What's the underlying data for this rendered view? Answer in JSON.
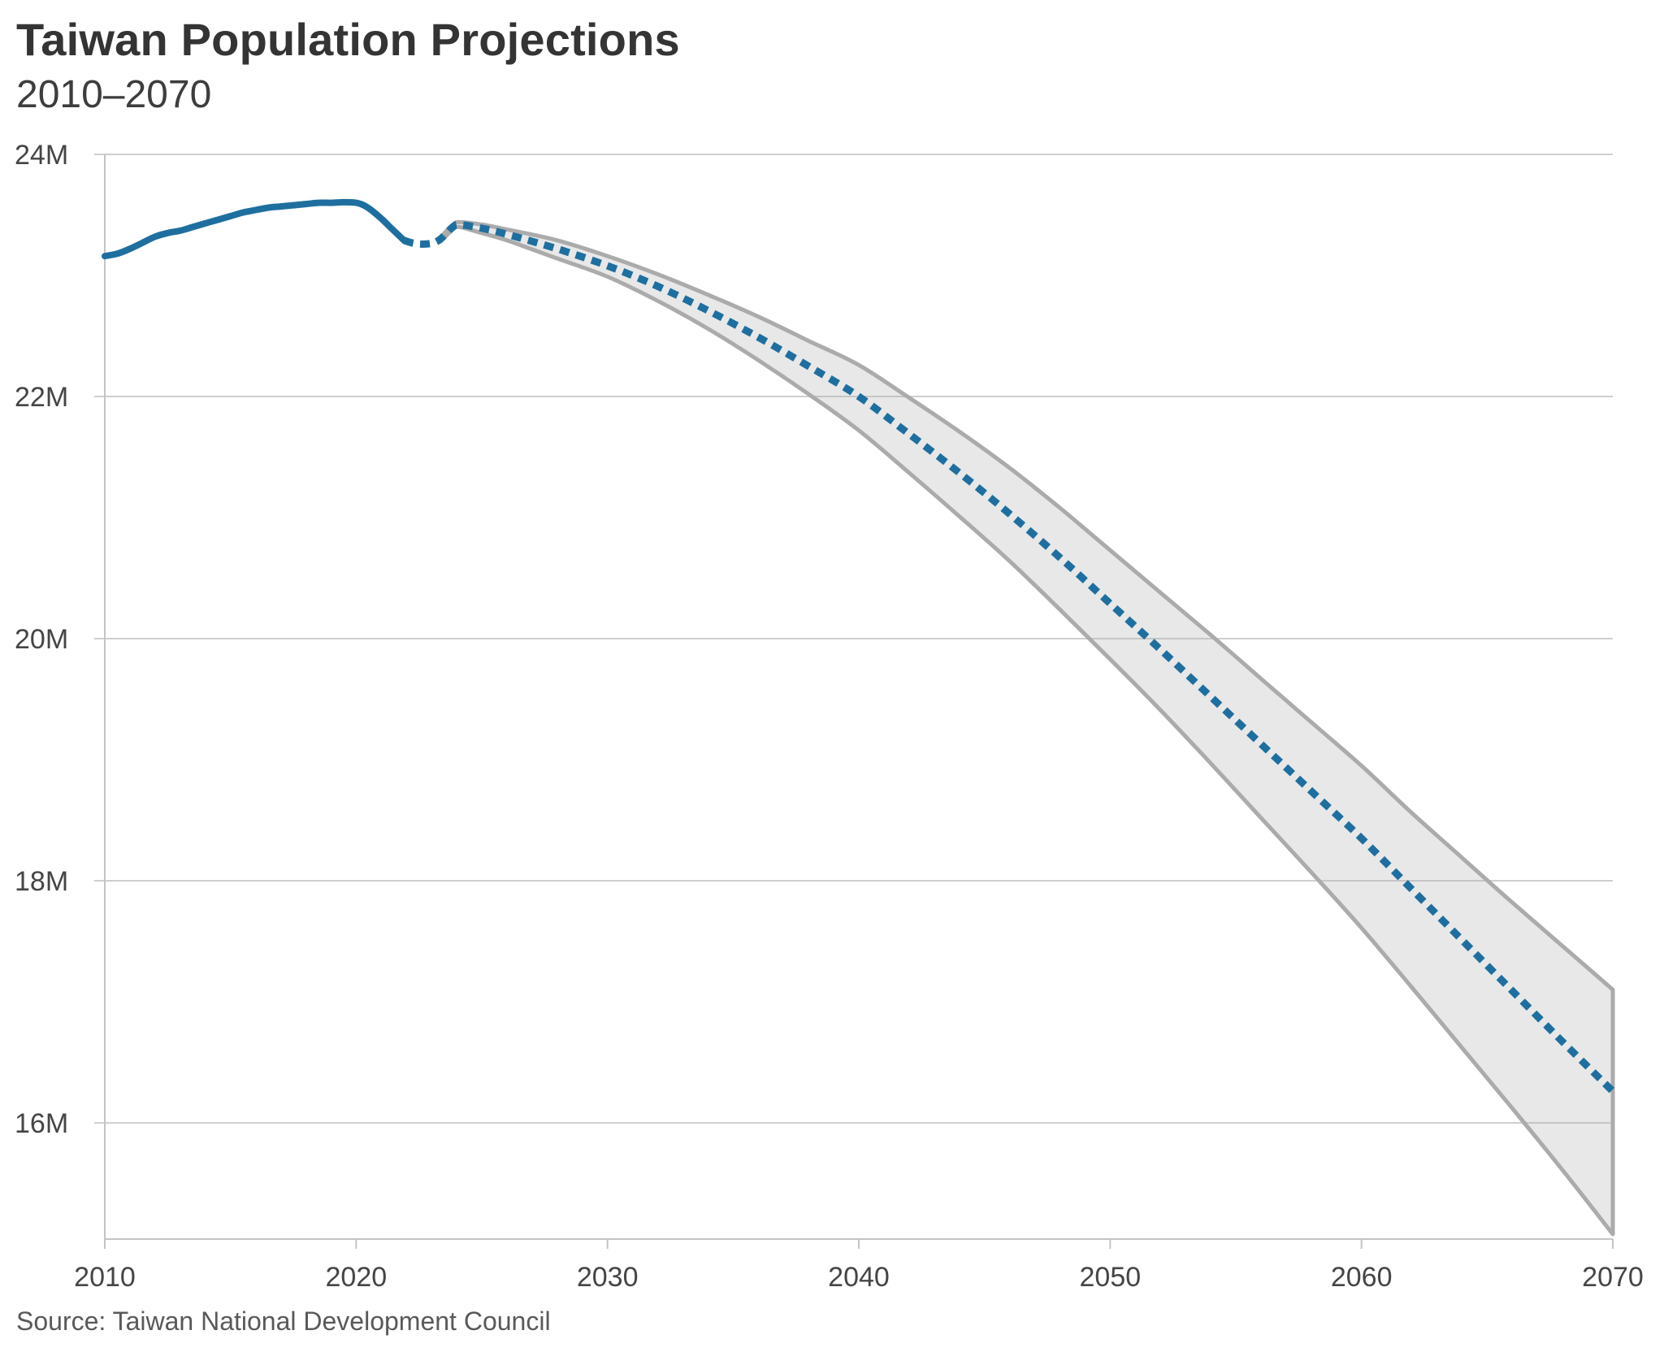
{
  "title": "Taiwan Population Projections",
  "subtitle": "2010–2070",
  "source": "Source: Taiwan National Development Council",
  "colors": {
    "line_blue": "#1E6F9F",
    "band_fill": "#E8E8E8",
    "band_edge": "#ABABAB",
    "grid": "#CFCFCF",
    "axis": "#C4C4C4",
    "text_dark": "#343434",
    "text_axis": "#454545"
  },
  "chart_data": {
    "type": "line",
    "title": "Taiwan Population Projections",
    "subtitle": "2010–2070",
    "xlabel": "",
    "ylabel": "",
    "xlim": [
      2010,
      2070
    ],
    "ylim": [
      15.04,
      24
    ],
    "grid": "horizontal",
    "legend": "none",
    "x_axis": {
      "ticks": [
        {
          "value": 2010,
          "label": "2010"
        },
        {
          "value": 2020,
          "label": "2020"
        },
        {
          "value": 2030,
          "label": "2030"
        },
        {
          "value": 2040,
          "label": "2040"
        },
        {
          "value": 2050,
          "label": "2050"
        },
        {
          "value": 2060,
          "label": "2060"
        },
        {
          "value": 2070,
          "label": "2070"
        }
      ]
    },
    "y_axis": {
      "ticks": [
        {
          "value": 24,
          "label": "24M"
        },
        {
          "value": 22,
          "label": "22M"
        },
        {
          "value": 20,
          "label": "20M"
        },
        {
          "value": 18,
          "label": "18M"
        },
        {
          "value": 16,
          "label": "16M"
        }
      ],
      "unit": "millions of people"
    },
    "series": [
      {
        "name": "projection-range",
        "kind": "band",
        "fill": "rgba(170,170,170,0.27)",
        "edge_color": "#ABABAB",
        "edge_width": 5,
        "points_year_low_high": [
          [
            2023.35,
            23.28,
            23.31
          ],
          [
            2023.6,
            23.33,
            23.37
          ],
          [
            2023.85,
            23.38,
            23.42
          ],
          [
            2024.1,
            23.4,
            23.44
          ],
          [
            2025,
            23.35,
            23.42
          ],
          [
            2026,
            23.29,
            23.38
          ],
          [
            2028,
            23.14,
            23.29
          ],
          [
            2030,
            22.99,
            23.16
          ],
          [
            2032,
            22.79,
            23.01
          ],
          [
            2034,
            22.56,
            22.84
          ],
          [
            2036,
            22.3,
            22.66
          ],
          [
            2038,
            22.02,
            22.46
          ],
          [
            2040,
            21.72,
            22.26
          ],
          [
            2042,
            21.37,
            21.99
          ],
          [
            2044,
            21.01,
            21.71
          ],
          [
            2046,
            20.64,
            21.41
          ],
          [
            2048,
            20.24,
            21.08
          ],
          [
            2050,
            19.83,
            20.73
          ],
          [
            2052,
            19.41,
            20.38
          ],
          [
            2054,
            18.97,
            20.03
          ],
          [
            2056,
            18.52,
            19.67
          ],
          [
            2058,
            18.07,
            19.31
          ],
          [
            2060,
            17.61,
            18.95
          ],
          [
            2062,
            17.12,
            18.56
          ],
          [
            2064,
            16.62,
            18.19
          ],
          [
            2066,
            16.12,
            17.82
          ],
          [
            2068,
            15.61,
            17.46
          ],
          [
            2070,
            15.08,
            17.1
          ]
        ]
      },
      {
        "name": "historical",
        "kind": "line",
        "style": "solid",
        "color": "#1E6F9F",
        "width": 8,
        "points_year_value": [
          [
            2010.0,
            23.16
          ],
          [
            2010.5,
            23.18
          ],
          [
            2011,
            23.22
          ],
          [
            2011.5,
            23.27
          ],
          [
            2012,
            23.32
          ],
          [
            2012.5,
            23.35
          ],
          [
            2013,
            23.37
          ],
          [
            2013.5,
            23.4
          ],
          [
            2014,
            23.43
          ],
          [
            2014.5,
            23.46
          ],
          [
            2015,
            23.49
          ],
          [
            2015.5,
            23.52
          ],
          [
            2016,
            23.54
          ],
          [
            2016.5,
            23.56
          ],
          [
            2017,
            23.57
          ],
          [
            2017.5,
            23.58
          ],
          [
            2018,
            23.59
          ],
          [
            2018.5,
            23.6
          ],
          [
            2019,
            23.6
          ],
          [
            2019.5,
            23.605
          ],
          [
            2020,
            23.6
          ],
          [
            2020.3,
            23.58
          ],
          [
            2020.6,
            23.54
          ],
          [
            2021.0,
            23.47
          ],
          [
            2021.3,
            23.41
          ],
          [
            2021.6,
            23.35
          ],
          [
            2021.9,
            23.29
          ]
        ]
      },
      {
        "name": "projection-median",
        "kind": "line",
        "style": "dotted",
        "color": "#1E6F9F",
        "width": 9,
        "dash": [
          12,
          8.5
        ],
        "points_year_value": [
          [
            2021.9,
            23.29
          ],
          [
            2022.2,
            23.27
          ],
          [
            2022.5,
            23.26
          ],
          [
            2022.8,
            23.26
          ],
          [
            2023.1,
            23.27
          ],
          [
            2023.35,
            23.3
          ],
          [
            2023.6,
            23.35
          ],
          [
            2023.85,
            23.4
          ],
          [
            2024.1,
            23.42
          ],
          [
            2025,
            23.39
          ],
          [
            2026,
            23.34
          ],
          [
            2028,
            23.22
          ],
          [
            2030,
            23.08
          ],
          [
            2032,
            22.91
          ],
          [
            2034,
            22.71
          ],
          [
            2036,
            22.49
          ],
          [
            2038,
            22.25
          ],
          [
            2040,
            22.0
          ],
          [
            2042,
            21.69
          ],
          [
            2044,
            21.37
          ],
          [
            2046,
            21.03
          ],
          [
            2048,
            20.67
          ],
          [
            2050,
            20.29
          ],
          [
            2052,
            19.91
          ],
          [
            2054,
            19.52
          ],
          [
            2056,
            19.13
          ],
          [
            2058,
            18.74
          ],
          [
            2060,
            18.35
          ],
          [
            2062,
            17.93
          ],
          [
            2064,
            17.51
          ],
          [
            2066,
            17.09
          ],
          [
            2068,
            16.67
          ],
          [
            2070,
            16.26
          ]
        ]
      }
    ]
  }
}
